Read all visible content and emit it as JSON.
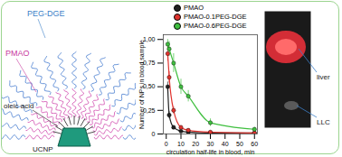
{
  "chart_data": {
    "type": "line",
    "x_label": "circulation half-life in blood, min",
    "y_label": "Number of NPs in blood sample",
    "xlim": [
      -2,
      62
    ],
    "xticks": [
      0,
      10,
      20,
      30,
      40,
      50,
      60
    ],
    "ylim": [
      0,
      1.05
    ],
    "yticks": [
      0,
      {
        "value": 0.25,
        "label": "0,25"
      },
      {
        "value": 0.5,
        "label": "0,50"
      },
      {
        "value": 0.75,
        "label": "0,75"
      },
      {
        "value": 1,
        "label": "1,00"
      }
    ],
    "legend": "top",
    "series": [
      {
        "name": "PMAO",
        "color": "#222222",
        "marker": "circle",
        "line_style": "solid",
        "x": [
          1,
          2,
          5,
          10,
          15,
          30,
          60
        ],
        "values": [
          0.5,
          0.2,
          0.07,
          0.03,
          0.02,
          0.01,
          0.01
        ],
        "errors": [
          0.05,
          0.04,
          0.02,
          0.01,
          0.01,
          0.005,
          0.005
        ]
      },
      {
        "name": "PMAO-0.1PEG-DGE",
        "color": "#e0342f",
        "marker": "circle",
        "line_style": "solid",
        "x": [
          1,
          2,
          5,
          10,
          15,
          30,
          60
        ],
        "values": [
          0.85,
          0.6,
          0.25,
          0.07,
          0.04,
          0.02,
          0.01
        ],
        "errors": [
          0.08,
          0.06,
          0.04,
          0.02,
          0.01,
          0.01,
          0.005
        ]
      },
      {
        "name": "PMAO-0.6PEG-DGE",
        "color": "#3fbf3f",
        "marker": "circle",
        "line_style": "solid",
        "x": [
          1,
          2,
          5,
          10,
          15,
          30,
          60
        ],
        "values": [
          0.95,
          0.9,
          0.75,
          0.5,
          0.4,
          0.12,
          0.05
        ],
        "errors": [
          0.05,
          0.08,
          0.1,
          0.08,
          0.06,
          0.04,
          0.02
        ]
      }
    ]
  },
  "diagram": {
    "labels": {
      "outer": "PEG-DGE",
      "middle": "PMAO",
      "inner": "oleic acid",
      "core": "UCNP"
    }
  },
  "inset": {
    "labels": {
      "organ": "liver",
      "tumor": "LLC"
    }
  }
}
